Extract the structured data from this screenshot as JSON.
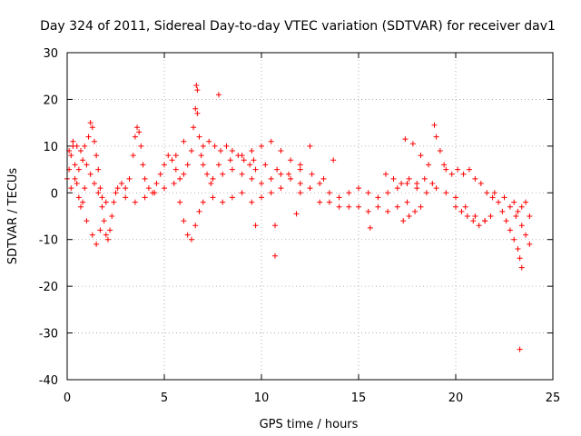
{
  "chart_data": {
    "type": "scatter",
    "title": "Day 324 of 2011, Sidereal Day-to-day VTEC variation (SDTVAR) for receiver dav1",
    "xlabel": "GPS time / hours",
    "ylabel": "SDTVAR / TECUs",
    "xlim": [
      0,
      25
    ],
    "ylim": [
      -40,
      30
    ],
    "xticks": [
      0,
      5,
      10,
      15,
      20,
      25
    ],
    "yticks": [
      30,
      20,
      10,
      0,
      -10,
      -20,
      -30,
      -40
    ],
    "xtick_labels": [
      "0",
      "5",
      "10",
      "15",
      "20",
      "25"
    ],
    "ytick_labels": [
      "30",
      "20",
      "10",
      "0",
      "-10",
      "-20",
      "-30",
      "-40"
    ],
    "grid": true,
    "marker": "plus",
    "color": "#ff0000",
    "series": [
      {
        "name": "dav1",
        "points": [
          [
            0.0,
            3
          ],
          [
            0.1,
            5
          ],
          [
            0.2,
            8
          ],
          [
            0.3,
            10
          ],
          [
            0.4,
            6
          ],
          [
            0.5,
            2
          ],
          [
            0.6,
            -1
          ],
          [
            0.7,
            -3
          ],
          [
            0.8,
            -2
          ],
          [
            0.9,
            1
          ],
          [
            0.1,
            9
          ],
          [
            0.3,
            11
          ],
          [
            0.5,
            10
          ],
          [
            0.7,
            9
          ],
          [
            0.9,
            10
          ],
          [
            1.1,
            12
          ],
          [
            1.2,
            15
          ],
          [
            1.3,
            14
          ],
          [
            1.4,
            11
          ],
          [
            1.5,
            8
          ],
          [
            1.6,
            5
          ],
          [
            1.7,
            1
          ],
          [
            1.8,
            -3
          ],
          [
            1.9,
            -6
          ],
          [
            2.0,
            -9
          ],
          [
            2.1,
            -10
          ],
          [
            2.2,
            -8
          ],
          [
            2.3,
            -5
          ],
          [
            2.4,
            -2
          ],
          [
            2.5,
            0
          ],
          [
            0.2,
            1
          ],
          [
            0.4,
            3
          ],
          [
            0.6,
            5
          ],
          [
            0.8,
            7
          ],
          [
            1.0,
            6
          ],
          [
            1.2,
            4
          ],
          [
            1.4,
            2
          ],
          [
            1.6,
            0
          ],
          [
            1.8,
            -1
          ],
          [
            2.0,
            -2
          ],
          [
            1.0,
            -6
          ],
          [
            1.3,
            -9
          ],
          [
            1.5,
            -11
          ],
          [
            1.7,
            -8
          ],
          [
            2.6,
            1
          ],
          [
            2.8,
            2
          ],
          [
            3.0,
            1
          ],
          [
            3.2,
            3
          ],
          [
            3.4,
            8
          ],
          [
            3.5,
            12
          ],
          [
            3.6,
            14
          ],
          [
            3.7,
            13
          ],
          [
            3.8,
            10
          ],
          [
            3.9,
            6
          ],
          [
            4.0,
            3
          ],
          [
            4.2,
            1
          ],
          [
            4.4,
            0
          ],
          [
            4.6,
            2
          ],
          [
            4.8,
            4
          ],
          [
            5.0,
            6
          ],
          [
            5.2,
            8
          ],
          [
            5.4,
            7
          ],
          [
            5.6,
            5
          ],
          [
            5.8,
            3
          ],
          [
            3.0,
            -1
          ],
          [
            3.5,
            -2
          ],
          [
            4.0,
            -1
          ],
          [
            4.5,
            0
          ],
          [
            5.0,
            1
          ],
          [
            5.5,
            2
          ],
          [
            6.0,
            4
          ],
          [
            6.2,
            6
          ],
          [
            6.4,
            9
          ],
          [
            6.5,
            14
          ],
          [
            6.6,
            18
          ],
          [
            6.7,
            22
          ],
          [
            6.65,
            23
          ],
          [
            6.7,
            17
          ],
          [
            6.8,
            12
          ],
          [
            6.9,
            8
          ],
          [
            7.0,
            6
          ],
          [
            7.2,
            4
          ],
          [
            7.4,
            2
          ],
          [
            5.8,
            -2
          ],
          [
            6.0,
            -6
          ],
          [
            6.2,
            -9
          ],
          [
            6.4,
            -10
          ],
          [
            6.6,
            -7
          ],
          [
            6.8,
            -4
          ],
          [
            7.0,
            -2
          ],
          [
            5.6,
            8
          ],
          [
            6.0,
            11
          ],
          [
            7.8,
            21
          ],
          [
            7.0,
            10
          ],
          [
            7.3,
            11
          ],
          [
            7.6,
            10
          ],
          [
            7.9,
            9
          ],
          [
            8.2,
            10
          ],
          [
            8.5,
            9
          ],
          [
            8.8,
            8
          ],
          [
            9.1,
            7
          ],
          [
            9.4,
            6
          ],
          [
            9.7,
            5
          ],
          [
            7.5,
            3
          ],
          [
            8.0,
            4
          ],
          [
            8.5,
            5
          ],
          [
            9.0,
            4
          ],
          [
            9.5,
            3
          ],
          [
            10.0,
            2
          ],
          [
            10.5,
            3
          ],
          [
            11.0,
            4
          ],
          [
            11.5,
            3
          ],
          [
            12.0,
            2
          ],
          [
            7.5,
            -1
          ],
          [
            8.0,
            -2
          ],
          [
            8.5,
            -1
          ],
          [
            9.0,
            0
          ],
          [
            9.5,
            -2
          ],
          [
            10.0,
            -1
          ],
          [
            10.5,
            0
          ],
          [
            11.0,
            1
          ],
          [
            7.8,
            6
          ],
          [
            8.4,
            7
          ],
          [
            9.0,
            8
          ],
          [
            9.6,
            7
          ],
          [
            10.2,
            6
          ],
          [
            10.8,
            5
          ],
          [
            11.4,
            4
          ],
          [
            12.0,
            5
          ],
          [
            12.6,
            4
          ],
          [
            13.2,
            3
          ],
          [
            9.5,
            9
          ],
          [
            10.0,
            10
          ],
          [
            10.5,
            11
          ],
          [
            11.0,
            9
          ],
          [
            11.5,
            7
          ],
          [
            12.0,
            6
          ],
          [
            9.7,
            -7
          ],
          [
            10.7,
            -7
          ],
          [
            10.7,
            -13.5
          ],
          [
            11.8,
            -4.5
          ],
          [
            12.5,
            10
          ],
          [
            13.7,
            7
          ],
          [
            12.0,
            0
          ],
          [
            12.5,
            1
          ],
          [
            13.0,
            2
          ],
          [
            13.5,
            0
          ],
          [
            14.0,
            -1
          ],
          [
            14.5,
            0
          ],
          [
            15.0,
            1
          ],
          [
            15.5,
            0
          ],
          [
            16.0,
            -1
          ],
          [
            16.5,
            0
          ],
          [
            13.0,
            -2
          ],
          [
            13.5,
            -2
          ],
          [
            14.0,
            -3
          ],
          [
            14.5,
            -3
          ],
          [
            15.0,
            -3
          ],
          [
            15.5,
            -4
          ],
          [
            16.0,
            -3
          ],
          [
            16.5,
            -4
          ],
          [
            17.0,
            -3
          ],
          [
            17.5,
            -2
          ],
          [
            15.6,
            -7.5
          ],
          [
            16.4,
            4
          ],
          [
            16.8,
            3
          ],
          [
            17.2,
            2
          ],
          [
            17.6,
            3
          ],
          [
            18.0,
            2
          ],
          [
            18.4,
            3
          ],
          [
            18.8,
            2
          ],
          [
            17.0,
            1
          ],
          [
            17.5,
            2
          ],
          [
            18.0,
            1
          ],
          [
            18.5,
            0
          ],
          [
            19.0,
            1
          ],
          [
            19.5,
            0
          ],
          [
            20.0,
            -1
          ],
          [
            20.5,
            -3
          ],
          [
            21.0,
            -5
          ],
          [
            21.5,
            -6
          ],
          [
            17.4,
            11.5
          ],
          [
            17.8,
            10.5
          ],
          [
            18.2,
            8
          ],
          [
            18.6,
            6
          ],
          [
            18.9,
            14.5
          ],
          [
            19.0,
            12
          ],
          [
            19.2,
            9
          ],
          [
            19.4,
            6
          ],
          [
            17.3,
            -6
          ],
          [
            17.6,
            -5
          ],
          [
            17.9,
            -4
          ],
          [
            18.2,
            -3
          ],
          [
            19.5,
            5
          ],
          [
            19.8,
            4
          ],
          [
            20.1,
            5
          ],
          [
            20.4,
            4
          ],
          [
            20.7,
            5
          ],
          [
            21.0,
            3
          ],
          [
            21.3,
            2
          ],
          [
            21.6,
            0
          ],
          [
            21.9,
            -1
          ],
          [
            20.0,
            -3
          ],
          [
            20.3,
            -4
          ],
          [
            20.6,
            -5
          ],
          [
            20.9,
            -6
          ],
          [
            21.2,
            -7
          ],
          [
            21.5,
            -6
          ],
          [
            21.8,
            -5
          ],
          [
            22.0,
            0
          ],
          [
            22.2,
            -2
          ],
          [
            22.4,
            -4
          ],
          [
            22.6,
            -6
          ],
          [
            22.8,
            -8
          ],
          [
            23.0,
            -10
          ],
          [
            23.2,
            -12
          ],
          [
            23.3,
            -14
          ],
          [
            23.4,
            -16
          ],
          [
            22.5,
            -1
          ],
          [
            22.8,
            -3
          ],
          [
            23.1,
            -5
          ],
          [
            23.4,
            -7
          ],
          [
            23.6,
            -9
          ],
          [
            23.8,
            -11
          ],
          [
            23.0,
            -2
          ],
          [
            23.2,
            -4
          ],
          [
            23.4,
            -3
          ],
          [
            23.6,
            -2
          ],
          [
            23.8,
            -5
          ],
          [
            23.3,
            -33.5
          ]
        ]
      }
    ]
  }
}
